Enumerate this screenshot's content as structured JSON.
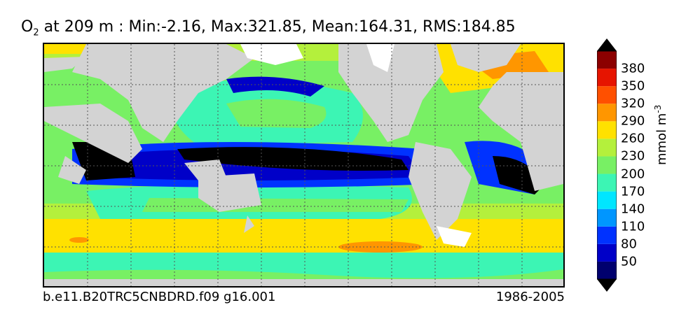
{
  "title": {
    "species": "O",
    "species_sub": "2",
    "text": " at 209 m : Min:-2.16, Max:321.85, Mean:164.31, RMS:184.85"
  },
  "footer": {
    "case": "b.e11.B20TRC5CNBDRD.f09 g16.001",
    "years": "1986-2005"
  },
  "colorbar": {
    "label": "mmol m",
    "label_exp": "-3",
    "ticks": [
      "50",
      "80",
      "110",
      "140",
      "170",
      "200",
      "230",
      "260",
      "290",
      "320",
      "350",
      "380"
    ],
    "colors": [
      "#00006e",
      "#0000c8",
      "#0032ff",
      "#0096ff",
      "#00e6ff",
      "#3cf5b4",
      "#78f064",
      "#b4f03c",
      "#ffe100",
      "#ff9600",
      "#ff5000",
      "#e61400",
      "#8c0000"
    ],
    "over_color": "#000000",
    "under_color": "#000000"
  },
  "map": {
    "land_color": "#d3d3d3",
    "ice_color": "#ffffff",
    "oxygen_min_zone_color": "#000000"
  }
}
